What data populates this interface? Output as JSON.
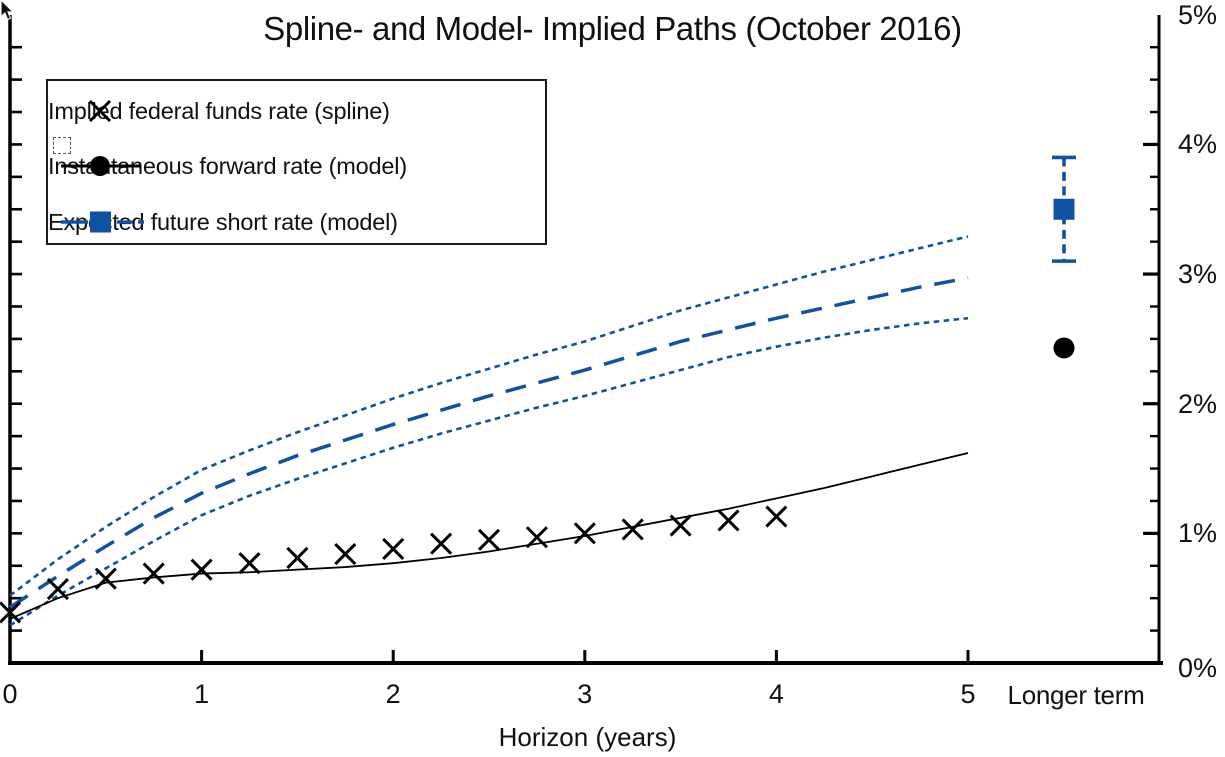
{
  "colors": {
    "blue": "#1051a2",
    "black": "#000000",
    "text": "#111111",
    "background": "#ffffff"
  },
  "legend": {
    "items": [
      {
        "label": "Implied federal funds rate (spline)",
        "marker": "x-marker",
        "color": "#000000"
      },
      {
        "label": "Instantaneous forward rate (model)",
        "marker": "solid-line-circle",
        "color": "#000000"
      },
      {
        "label": "Expected future short rate (model)",
        "marker": "dashed-line-square",
        "color": "#1051a2"
      }
    ]
  },
  "chart_data": {
    "type": "line",
    "title": "Spline- and Model- Implied Paths (October 2016)",
    "xlabel": "Horizon (years)",
    "ylabel": "",
    "x_axis": {
      "ticks": [
        "0",
        "1",
        "2",
        "3",
        "4",
        "5"
      ],
      "extra_category": "Longer term",
      "range_years": [
        0,
        5
      ]
    },
    "y_axis": {
      "ticks": [
        "0%",
        "1%",
        "2%",
        "3%",
        "4%",
        "5%"
      ],
      "range_pct": [
        0,
        5
      ],
      "minor_step_pct": 0.25,
      "side": "right",
      "grid": false
    },
    "legend_position": "upper-left",
    "series": [
      {
        "name": "Implied federal funds rate (spline)",
        "style": "x-scatter",
        "color": "#000000",
        "x_years": [
          0,
          0.25,
          0.5,
          0.75,
          1,
          1.25,
          1.5,
          1.75,
          2,
          2.25,
          2.5,
          2.75,
          3,
          3.25,
          3.5,
          3.75,
          4
        ],
        "y_pct": [
          0.39,
          0.57,
          0.65,
          0.69,
          0.72,
          0.77,
          0.81,
          0.84,
          0.88,
          0.92,
          0.95,
          0.97,
          1.0,
          1.03,
          1.06,
          1.1,
          1.13
        ]
      },
      {
        "name": "Instantaneous forward rate (model)",
        "style": "solid-line",
        "color": "#000000",
        "x_years": [
          0,
          0.25,
          0.5,
          0.75,
          1,
          1.25,
          1.5,
          1.75,
          2,
          2.25,
          2.5,
          2.75,
          3,
          3.25,
          3.5,
          3.75,
          4,
          4.25,
          4.5,
          4.75,
          5
        ],
        "y_pct": [
          0.34,
          0.5,
          0.62,
          0.66,
          0.69,
          0.7,
          0.72,
          0.74,
          0.77,
          0.81,
          0.86,
          0.92,
          0.98,
          1.05,
          1.12,
          1.19,
          1.27,
          1.35,
          1.44,
          1.53,
          1.62
        ],
        "longer_term_pct": 2.43
      },
      {
        "name": "Expected future short rate (model)",
        "style": "long-dash-line",
        "color": "#1051a2",
        "x_years": [
          0,
          0.25,
          0.5,
          0.75,
          1,
          1.25,
          1.5,
          1.75,
          2,
          2.25,
          2.5,
          2.75,
          3,
          3.25,
          3.5,
          3.75,
          4,
          4.25,
          4.5,
          4.75,
          5
        ],
        "y_pct": [
          0.43,
          0.67,
          0.9,
          1.12,
          1.31,
          1.46,
          1.6,
          1.72,
          1.84,
          1.95,
          2.06,
          2.16,
          2.26,
          2.37,
          2.48,
          2.57,
          2.66,
          2.74,
          2.82,
          2.9,
          2.97
        ],
        "longer_term": {
          "value_pct": 3.5,
          "upper_whisker_pct": 3.9,
          "lower_whisker_pct": 3.1
        }
      },
      {
        "name": "Expected future short rate upper confidence band",
        "style": "dotted-line",
        "color": "#1051a2",
        "x_years": [
          0,
          0.25,
          0.5,
          0.75,
          1,
          1.25,
          1.5,
          1.75,
          2,
          2.25,
          2.5,
          2.75,
          3,
          3.25,
          3.5,
          3.75,
          4,
          4.25,
          4.5,
          4.75,
          5
        ],
        "y_pct": [
          0.52,
          0.8,
          1.05,
          1.28,
          1.49,
          1.64,
          1.78,
          1.91,
          2.04,
          2.16,
          2.27,
          2.38,
          2.48,
          2.6,
          2.72,
          2.82,
          2.92,
          3.02,
          3.11,
          3.2,
          3.29
        ]
      },
      {
        "name": "Expected future short rate lower confidence band",
        "style": "dotted-line",
        "color": "#1051a2",
        "x_years": [
          0,
          0.25,
          0.5,
          0.75,
          1,
          1.25,
          1.5,
          1.75,
          2,
          2.25,
          2.5,
          2.75,
          3,
          3.25,
          3.5,
          3.75,
          4,
          4.25,
          4.5,
          4.75,
          5
        ],
        "y_pct": [
          0.29,
          0.52,
          0.73,
          0.94,
          1.14,
          1.29,
          1.42,
          1.54,
          1.66,
          1.77,
          1.87,
          1.97,
          2.06,
          2.16,
          2.26,
          2.36,
          2.44,
          2.51,
          2.57,
          2.62,
          2.66
        ]
      }
    ]
  }
}
